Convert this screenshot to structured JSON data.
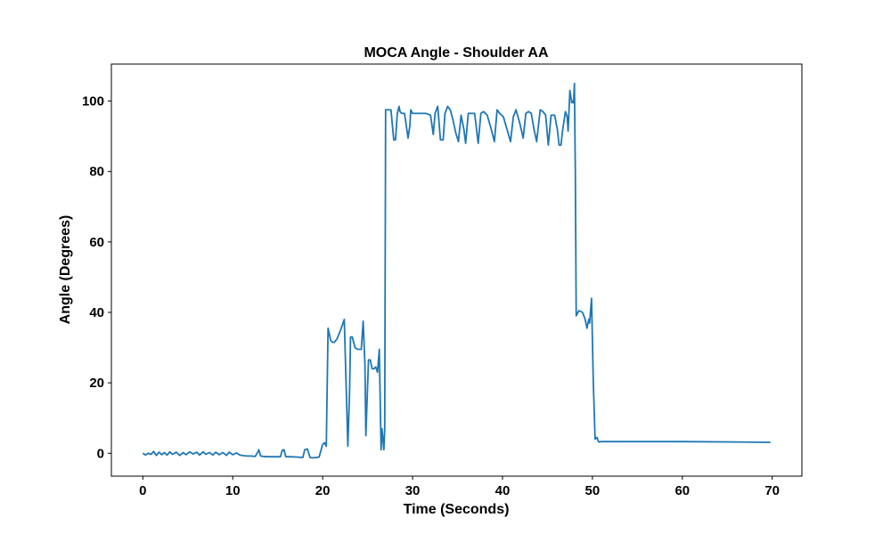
{
  "chart_data": {
    "type": "line",
    "title": "MOCA Angle - Shoulder AA",
    "xlabel": "Time (Seconds)",
    "ylabel": "Angle (Degrees)",
    "xlim": [
      -3.5,
      73.3
    ],
    "ylim": [
      -6.5,
      110.5
    ],
    "xticks": [
      0,
      10,
      20,
      30,
      40,
      50,
      60,
      70
    ],
    "yticks": [
      0,
      20,
      40,
      60,
      80,
      100
    ],
    "grid": false,
    "legend": "none",
    "series": [
      {
        "color": "#1f77b4",
        "x": [
          0,
          0.3,
          0.6,
          0.9,
          1.2,
          1.5,
          1.8,
          2.1,
          2.4,
          2.7,
          3.0,
          3.3,
          3.7,
          4.1,
          4.5,
          4.8,
          5.2,
          5.6,
          6.0,
          6.3,
          6.7,
          7.0,
          7.4,
          7.8,
          8.1,
          8.5,
          8.9,
          9.3,
          9.6,
          10.0,
          10.4,
          10.8,
          11.2,
          11.6,
          12.0,
          12.5,
          12.8,
          12.9,
          13.1,
          13.4,
          14.0,
          14.8,
          15.3,
          15.5,
          15.7,
          15.9,
          16.1,
          16.5,
          17.2,
          17.8,
          18.0,
          18.3,
          18.6,
          18.8,
          19.0,
          19.6,
          20.0,
          20.2,
          20.4,
          20.6,
          20.9,
          21.1,
          21.3,
          21.6,
          22.0,
          22.4,
          22.6,
          22.8,
          23.0,
          23.1,
          23.3,
          23.6,
          23.9,
          24.3,
          24.5,
          24.7,
          24.8,
          25.1,
          25.3,
          25.5,
          25.7,
          25.9,
          26.1,
          26.3,
          26.5,
          26.6,
          26.8,
          26.9,
          27.0,
          27.2,
          27.4,
          27.6,
          27.9,
          28.1,
          28.3,
          28.5,
          28.6,
          28.8,
          29.1,
          29.5,
          29.7,
          29.8,
          30.0,
          30.2,
          30.6,
          31.0,
          31.5,
          32.0,
          32.3,
          32.5,
          32.8,
          33.1,
          33.4,
          33.6,
          33.9,
          34.2,
          34.5,
          34.8,
          35.1,
          35.4,
          35.7,
          35.9,
          36.2,
          36.5,
          36.9,
          37.3,
          37.6,
          37.9,
          38.3,
          38.7,
          39.1,
          39.4,
          39.7,
          40.1,
          40.5,
          40.9,
          41.2,
          41.5,
          41.9,
          42.3,
          42.6,
          42.9,
          43.2,
          43.5,
          43.8,
          44.2,
          44.5,
          44.8,
          45.1,
          45.4,
          45.8,
          46.1,
          46.3,
          46.5,
          46.7,
          47.0,
          47.2,
          47.3,
          47.5,
          47.7,
          47.8,
          47.9,
          48.0,
          48.1,
          48.2,
          48.5,
          48.9,
          49.2,
          49.4,
          49.6,
          49.7,
          49.9,
          50.1,
          50.3,
          50.5,
          50.7,
          51.0,
          52.0,
          55.0,
          60.0,
          66.0,
          69.8
        ],
        "y": [
          0,
          -0.5,
          0,
          -0.3,
          0.5,
          -0.6,
          0.3,
          -0.4,
          0.2,
          -0.5,
          0.4,
          -0.3,
          0.3,
          -0.6,
          0.2,
          -0.4,
          0.4,
          -0.2,
          0.3,
          -0.5,
          0.4,
          -0.3,
          0.2,
          -0.5,
          0.3,
          -0.4,
          0.2,
          -0.6,
          0.3,
          -0.4,
          0.1,
          -0.5,
          -0.7,
          -0.8,
          -0.8,
          -0.9,
          0.4,
          1.0,
          -0.8,
          -0.9,
          -1.0,
          -1.0,
          -1.0,
          0.8,
          1.0,
          -1.0,
          -1.0,
          -1.0,
          -1.1,
          -1.2,
          1.0,
          1.2,
          -1.2,
          -1.3,
          -1.3,
          -1.1,
          2.5,
          3.0,
          2.0,
          35.5,
          32,
          31.5,
          31.5,
          32.5,
          35,
          38,
          20,
          2.0,
          18,
          33,
          33,
          30,
          29.5,
          29.5,
          37.5,
          25,
          5,
          26.5,
          26.5,
          24,
          24,
          24.5,
          23,
          29.5,
          1,
          7,
          1,
          7,
          97.5,
          97.5,
          97.5,
          97.5,
          89,
          89,
          96.5,
          98.5,
          97,
          96.5,
          96.5,
          89.5,
          93,
          97.5,
          96.5,
          96.5,
          96.5,
          96.5,
          96.5,
          96,
          90.5,
          96.5,
          98.5,
          89,
          89,
          96.5,
          98.5,
          97.5,
          94.5,
          91,
          88.5,
          96,
          92,
          88,
          96.5,
          96.5,
          96.5,
          88,
          96.5,
          97,
          96,
          92.5,
          88.5,
          97.5,
          96.5,
          95.5,
          92,
          88.5,
          95.5,
          97.5,
          94,
          89.5,
          96.5,
          97,
          96.5,
          92,
          88.5,
          97.5,
          97,
          96,
          87.5,
          96,
          96,
          92,
          87.5,
          87.5,
          92,
          97,
          95.5,
          91.5,
          103,
          99.5,
          100,
          99.5,
          105,
          80,
          39,
          40.5,
          40,
          38,
          35.5,
          38,
          37,
          44,
          20,
          4,
          4.5,
          3.2,
          3.3,
          3.3,
          3.3,
          3.3,
          3.2,
          3.1
        ]
      }
    ]
  }
}
